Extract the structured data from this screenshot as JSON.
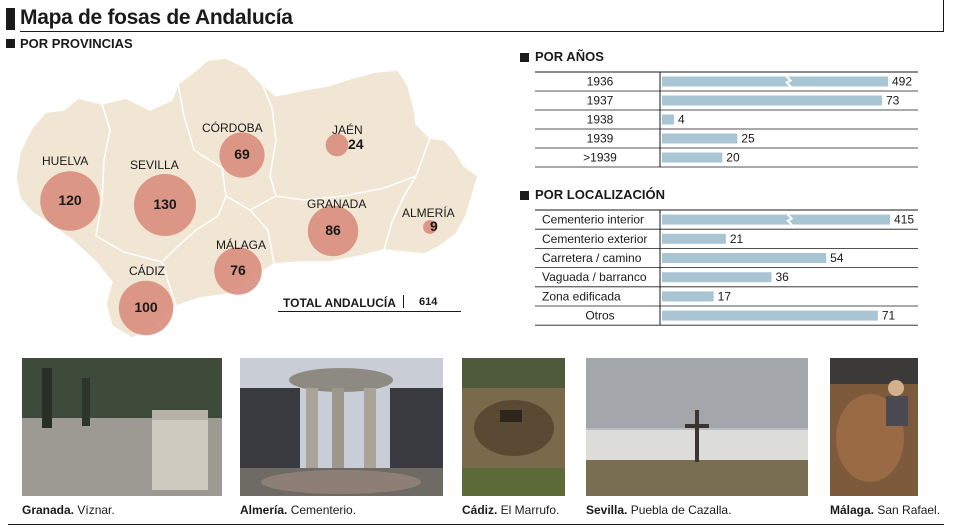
{
  "title": "Mapa de fosas de Andalucía",
  "sections": {
    "provinces": "POR PROVINCIAS",
    "years": "POR AÑOS",
    "location": "POR LOCALIZACIÓN"
  },
  "colors": {
    "map_fill": "#f1e6d3",
    "bubble": "#d88d7d",
    "bar": "#a9c5d3"
  },
  "total": {
    "label": "TOTAL ANDALUCÍA",
    "value": "614"
  },
  "chart_data": [
    {
      "type": "bubble-map",
      "title": "POR PROVINCIAS",
      "categories": [
        "Huelva",
        "Sevilla",
        "Córdoba",
        "Jaén",
        "Granada",
        "Almería",
        "Málaga",
        "Cádiz"
      ],
      "labels": [
        "HUELVA",
        "SEVILLA",
        "CÓRDOBA",
        "JAÉN",
        "GRANADA",
        "ALMERÍA",
        "MÁLAGA",
        "CÁDIZ"
      ],
      "values": [
        120,
        130,
        69,
        24,
        86,
        9,
        76,
        100
      ]
    },
    {
      "type": "bar",
      "orientation": "horizontal",
      "title": "POR AÑOS",
      "categories": [
        "1936",
        "1937",
        "1938",
        "1939",
        ">1939"
      ],
      "values": [
        492,
        73,
        4,
        25,
        20
      ],
      "broken_axis": [
        "1936"
      ]
    },
    {
      "type": "bar",
      "orientation": "horizontal",
      "title": "POR LOCALIZACIÓN",
      "categories": [
        "Cementerio interior",
        "Cementerio exterior",
        "Carretera / camino",
        "Vaguada / barranco",
        "Zona edificada",
        "Otros"
      ],
      "values": [
        415,
        21,
        54,
        36,
        17,
        71
      ],
      "broken_axis": [
        "Cementerio interior"
      ]
    }
  ],
  "photos": [
    {
      "place": "Granada.",
      "detail": " Víznar."
    },
    {
      "place": "Almería.",
      "detail": " Cementerio."
    },
    {
      "place": "Cádiz.",
      "detail": " El Marrufo."
    },
    {
      "place": "Sevilla.",
      "detail": " Puebla de Cazalla."
    },
    {
      "place": "Málaga.",
      "detail": " San Rafael."
    }
  ]
}
